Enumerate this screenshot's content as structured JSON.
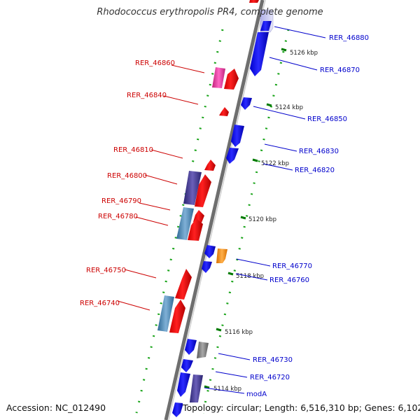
{
  "title": "Rhodococcus erythropolis PR4, complete genome",
  "footer": {
    "accession": "Accession: NC_012490",
    "summary": "Topology: circular; Length: 6,516,310 bp; Genes: 6,102"
  },
  "colors": {
    "backbone": "#808080",
    "forward_label": "#0000cc",
    "reverse_label": "#cc0000",
    "tick": "#007a00"
  },
  "ticks": [
    {
      "label": "5126 kbp"
    },
    {
      "label": "5124 kbp"
    },
    {
      "label": "5122 kbp"
    },
    {
      "label": "5120 kbp"
    },
    {
      "label": "5118 kbp"
    },
    {
      "label": "5116 kbp"
    },
    {
      "label": "5114 kbp"
    }
  ],
  "genes": {
    "right": [
      "RER_46880",
      "RER_46870",
      "RER_46850",
      "RER_46830",
      "RER_46820",
      "RER_46770",
      "RER_46760",
      "RER_46730",
      "RER_46720",
      "modA"
    ],
    "left": [
      "RER_46860",
      "RER_46840",
      "RER_46810",
      "RER_46800",
      "RER_46790",
      "RER_46780",
      "RER_46750",
      "RER_46740"
    ]
  }
}
